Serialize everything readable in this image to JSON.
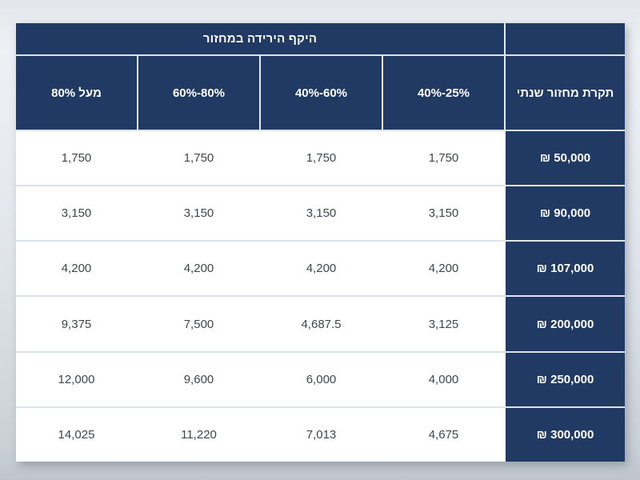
{
  "table": {
    "title": "היקף הירידה במחזור",
    "columns": [
      {
        "key": "annual_cap",
        "label": "תקרת מחזור שנתי"
      },
      {
        "key": "drop_25_40",
        "label": "40%-25%"
      },
      {
        "key": "drop_40_60",
        "label": "40%-60%"
      },
      {
        "key": "drop_60_80",
        "label": "60%-80%"
      },
      {
        "key": "drop_above_80",
        "label": "מעל 80%"
      }
    ],
    "rows": [
      {
        "cells": [
          "₪ 50,000",
          "1,750",
          "1,750",
          "1,750",
          "1,750"
        ]
      },
      {
        "cells": [
          "₪ 90,000",
          "3,150",
          "3,150",
          "3,150",
          "3,150"
        ]
      },
      {
        "cells": [
          "₪ 107,000",
          "4,200",
          "4,200",
          "4,200",
          "4,200"
        ]
      },
      {
        "cells": [
          "₪ 200,000",
          "3,125",
          "4,687.5",
          "7,500",
          "9,375"
        ]
      },
      {
        "cells": [
          "₪ 250,000",
          "4,000",
          "6,000",
          "9,600",
          "12,000"
        ]
      },
      {
        "cells": [
          "₪ 300,000",
          "4,675",
          "7,013",
          "11,220",
          "14,025"
        ]
      }
    ],
    "colors": {
      "header_bg": "#203a63",
      "header_text": "#ffffff",
      "cell_bg": "#ffffff",
      "cell_text": "#3f464e",
      "grid_line": "#dde3ea"
    },
    "currency_symbol": "₪"
  }
}
